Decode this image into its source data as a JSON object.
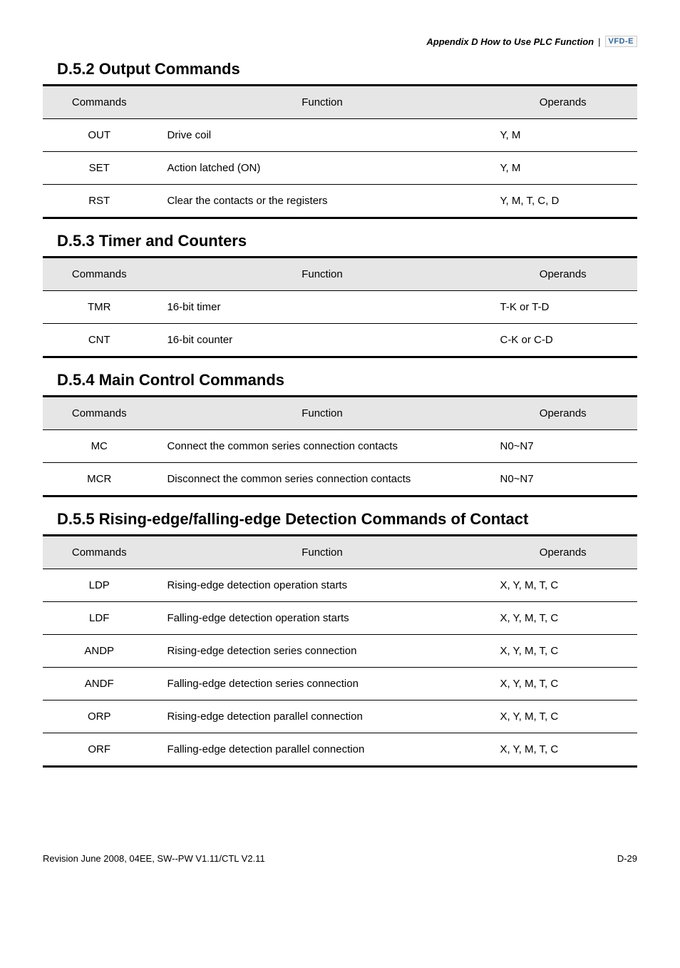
{
  "header": {
    "title": "Appendix D How to Use PLC Function",
    "badge": "VFD-E"
  },
  "sections": [
    {
      "title": "D.5.2 Output Commands",
      "columns": [
        "Commands",
        "Function",
        "Operands"
      ],
      "rows": [
        {
          "cmd": "OUT",
          "func": "Drive coil",
          "op": "Y, M"
        },
        {
          "cmd": "SET",
          "func": "Action latched (ON)",
          "op": "Y, M"
        },
        {
          "cmd": "RST",
          "func": "Clear the contacts or the registers",
          "op": "Y, M, T, C, D"
        }
      ]
    },
    {
      "title": "D.5.3 Timer and Counters",
      "columns": [
        "Commands",
        "Function",
        "Operands"
      ],
      "rows": [
        {
          "cmd": "TMR",
          "func": "16-bit timer",
          "op": "T-K or T-D"
        },
        {
          "cmd": "CNT",
          "func": "16-bit counter",
          "op": "C-K or C-D"
        }
      ]
    },
    {
      "title": "D.5.4 Main Control Commands",
      "columns": [
        "Commands",
        "Function",
        "Operands"
      ],
      "rows": [
        {
          "cmd": "MC",
          "func": "Connect the common series connection contacts",
          "op": "N0~N7"
        },
        {
          "cmd": "MCR",
          "func": "Disconnect the common series connection contacts",
          "op": "N0~N7"
        }
      ]
    },
    {
      "title": "D.5.5 Rising-edge/falling-edge Detection Commands of Contact",
      "columns": [
        "Commands",
        "Function",
        "Operands"
      ],
      "rows": [
        {
          "cmd": "LDP",
          "func": "Rising-edge detection operation starts",
          "op": "X, Y, M, T, C"
        },
        {
          "cmd": "LDF",
          "func": "Falling-edge detection operation starts",
          "op": "X, Y, M, T, C"
        },
        {
          "cmd": "ANDP",
          "func": "Rising-edge detection series connection",
          "op": "X, Y, M, T, C"
        },
        {
          "cmd": "ANDF",
          "func": "Falling-edge detection series connection",
          "op": "X, Y, M, T, C"
        },
        {
          "cmd": "ORP",
          "func": "Rising-edge detection parallel connection",
          "op": "X, Y, M, T, C"
        },
        {
          "cmd": "ORF",
          "func": "Falling-edge detection parallel connection",
          "op": "X, Y, M, T, C"
        }
      ]
    }
  ],
  "footer": {
    "left": "Revision June 2008, 04EE, SW--PW V1.11/CTL V2.11",
    "right": "D-29"
  }
}
